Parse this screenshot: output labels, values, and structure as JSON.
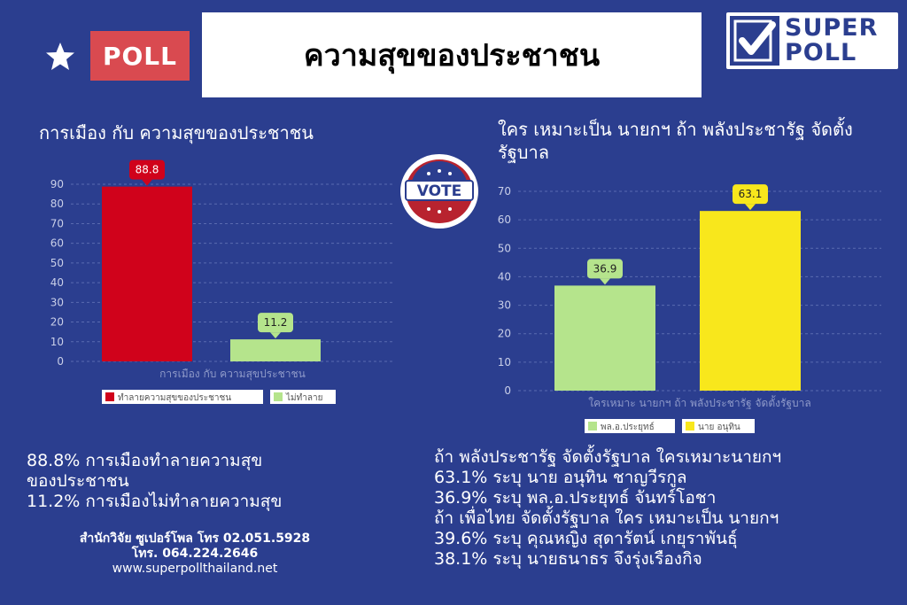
{
  "header": {
    "poll_label": "POLL",
    "title": "ความสุขของประชาชน",
    "logo_line1": "SUPER",
    "logo_line2": "POLL"
  },
  "badge": {
    "label": "VOTE"
  },
  "colors": {
    "background": "#2b3e8f",
    "red": "#d0021b",
    "green": "#b5e48c",
    "yellow": "#f8e71c"
  },
  "chart_data": [
    {
      "type": "bar",
      "title": "การเมือง กับ ความสุขของประชาชน",
      "xlabel": "การเมือง กับ ความสุขประชาชน",
      "ylim": [
        0,
        90
      ],
      "yticks": [
        0,
        10,
        20,
        30,
        40,
        50,
        60,
        70,
        80,
        90
      ],
      "series": [
        {
          "name": "ทำลายความสุขของประชาชน",
          "value": 88.8,
          "color": "#d0021b"
        },
        {
          "name": "ไม่ทำลาย",
          "value": 11.2,
          "color": "#b5e48c"
        }
      ],
      "grid": true,
      "legend": "bottom"
    },
    {
      "type": "bar",
      "title": "ใคร เหมาะเป็น นายกฯ ถ้า พลังประชารัฐ จัดตั้งรัฐบาล",
      "xlabel": "ใครเหมาะ นายกฯ ถ้า พลังประชารัฐ จัดตั้งรัฐบาล",
      "ylim": [
        0,
        70
      ],
      "yticks": [
        0,
        10,
        20,
        30,
        40,
        50,
        60,
        70
      ],
      "series": [
        {
          "name": "พล.อ.ประยุทธ์",
          "value": 36.9,
          "color": "#b5e48c"
        },
        {
          "name": "นาย อนุทิน",
          "value": 63.1,
          "color": "#f8e71c"
        }
      ],
      "grid": true,
      "legend": "bottom"
    }
  ],
  "left_text": [
    "88.8% การเมืองทำลายความสุข",
    "ของประชาชน",
    "11.2% การเมืองไม่ทำลายความสุข"
  ],
  "contact": {
    "line1": "สำนักวิจัย ซูเปอร์โพล โทร 02.051.5928",
    "line2": "โทร. 064.224.2646",
    "line3": "www.superpollthailand.net"
  },
  "right_text": [
    "ถ้า พลังประชารัฐ จัดตั้งรัฐบาล ใครเหมาะนายกฯ",
    "63.1% ระบุ นาย อนุทิน ชาญวีรกูล",
    "36.9% ระบุ พล.อ.ประยุทธ์ จันทร์โอชา",
    "ถ้า เพื่อไทย จัดตั้งรัฐบาล ใคร เหมาะเป็น นายกฯ",
    "39.6% ระบุ คุณหญิง สุดารัตน์ เกยุราพันธุ์",
    "38.1% ระบุ นายธนาธร จึงรุ่งเรืองกิจ"
  ]
}
